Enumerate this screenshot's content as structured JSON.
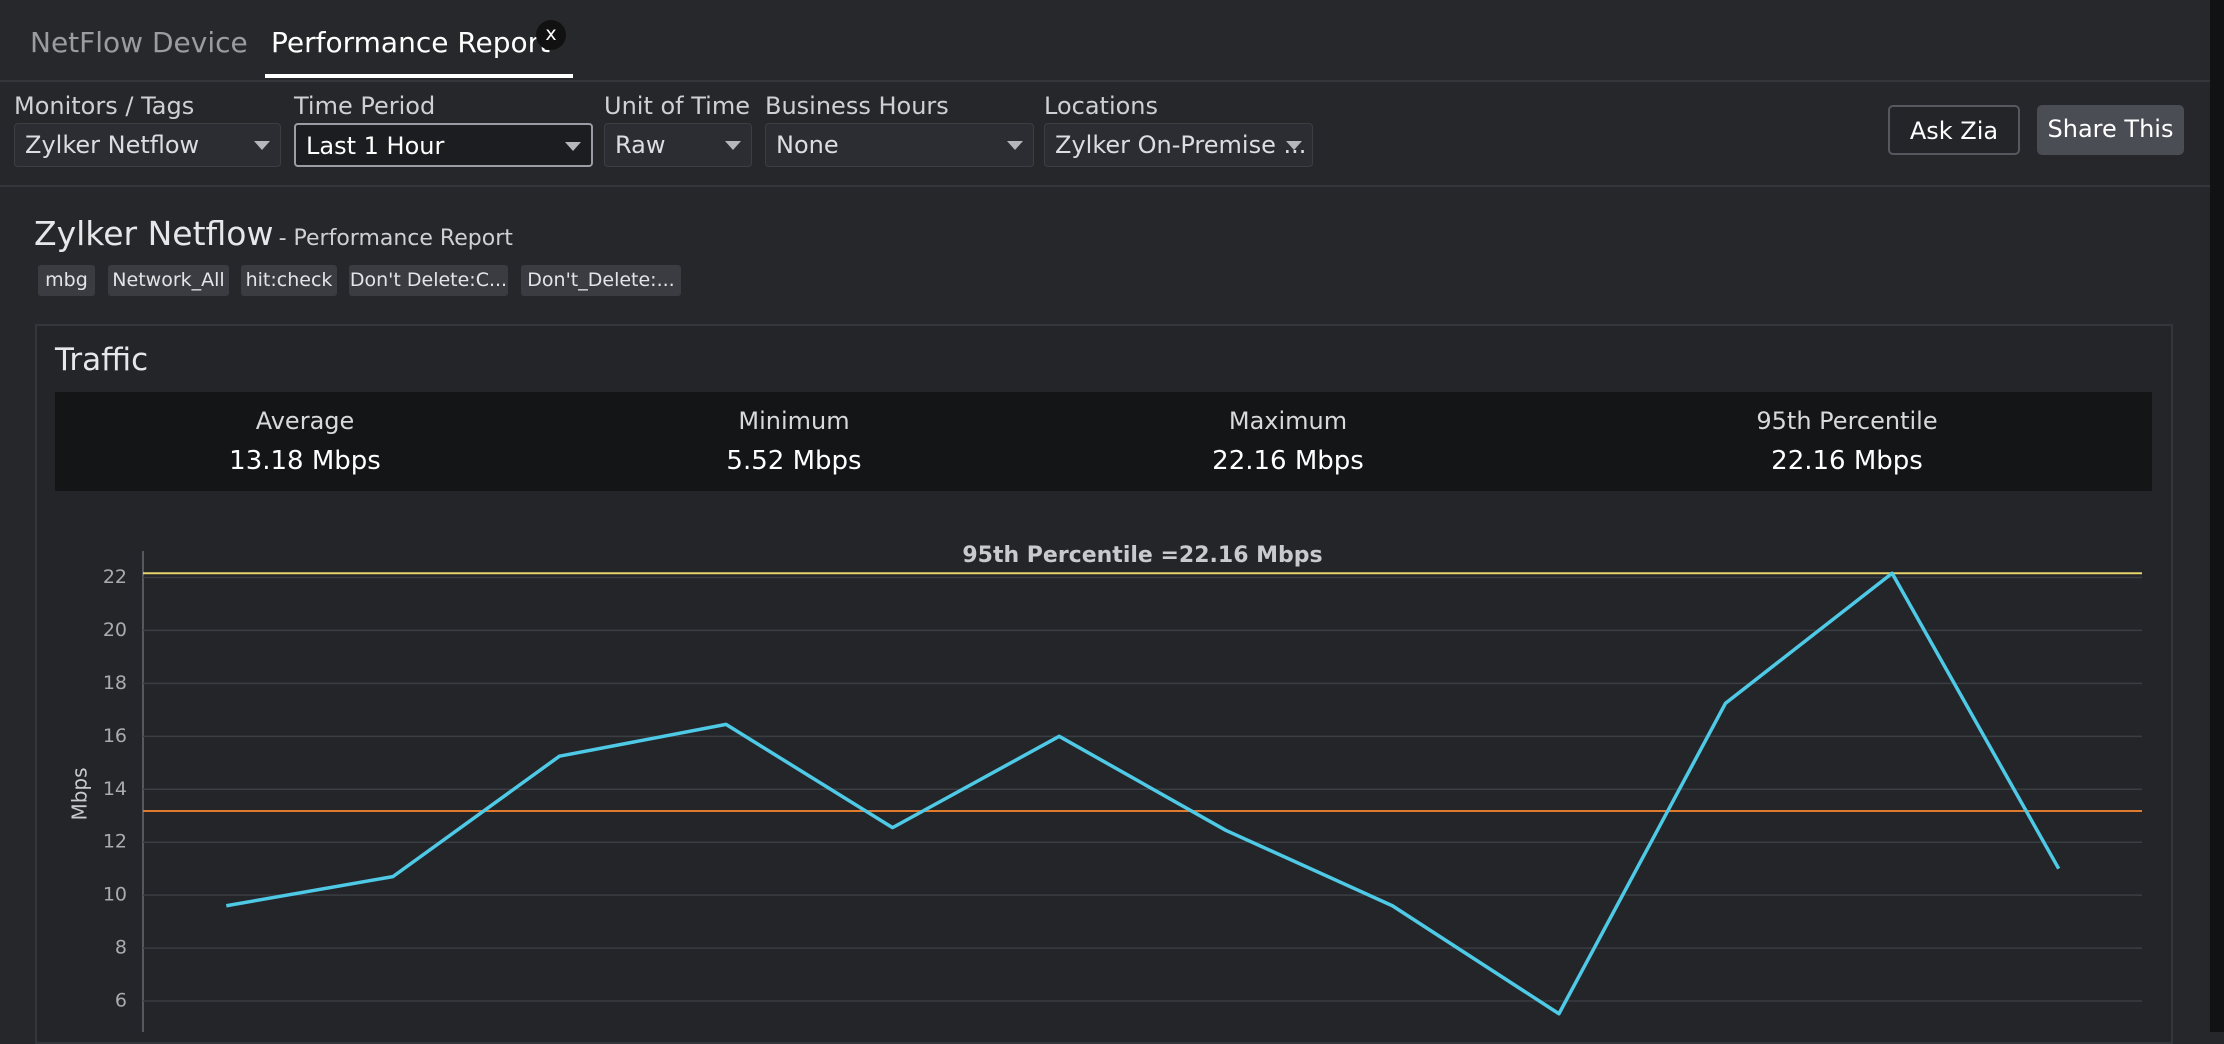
{
  "tabs": [
    {
      "label": "NetFlow Device"
    },
    {
      "label": "Performance Report",
      "close": "x"
    }
  ],
  "filters": [
    {
      "label": "Monitors / Tags",
      "value": "Zylker Netflow"
    },
    {
      "label": "Time Period",
      "value": "Last 1 Hour"
    },
    {
      "label": "Unit of Time",
      "value": "Raw"
    },
    {
      "label": "Business Hours",
      "value": "None"
    },
    {
      "label": "Locations",
      "value": "Zylker On-Premise ..."
    }
  ],
  "buttons": [
    "Ask Zia",
    "Share This"
  ],
  "report": {
    "title": "Zylker Netflow",
    "subtitle": "- Performance Report",
    "tags": [
      "mbg",
      "Network_All",
      "hit:check",
      "Don't Delete:C...",
      "Don't_Delete:..."
    ]
  },
  "traffic": {
    "title": "Traffic",
    "stats": [
      {
        "label": "Average",
        "value": "13.18 Mbps"
      },
      {
        "label": "Minimum",
        "value": "5.52 Mbps"
      },
      {
        "label": "Maximum",
        "value": "22.16 Mbps"
      },
      {
        "label": "95th Percentile",
        "value": "22.16 Mbps"
      }
    ]
  },
  "chart_data": {
    "type": "line",
    "ylabel": "Mbps",
    "categories": [
      null,
      null,
      null,
      null,
      null,
      null,
      null,
      null,
      null,
      null,
      null,
      null
    ],
    "series": [
      {
        "color": "#4ec9e6",
        "values": [
          9.6,
          10.7,
          15.25,
          16.45,
          12.55,
          16.0,
          12.45,
          9.6,
          5.52,
          17.25,
          22.16,
          11.0
        ]
      }
    ],
    "reference_lines": [
      {
        "value": 22.16,
        "color": "#e8d46c",
        "label": "95th Percentile =22.16 Mbps"
      },
      {
        "value": 13.18,
        "color": "#e07a2c"
      }
    ],
    "ylim": [
      4,
      23
    ],
    "yticks": [
      6,
      8,
      10,
      12,
      14,
      16,
      18,
      20,
      22
    ],
    "grid": true
  }
}
